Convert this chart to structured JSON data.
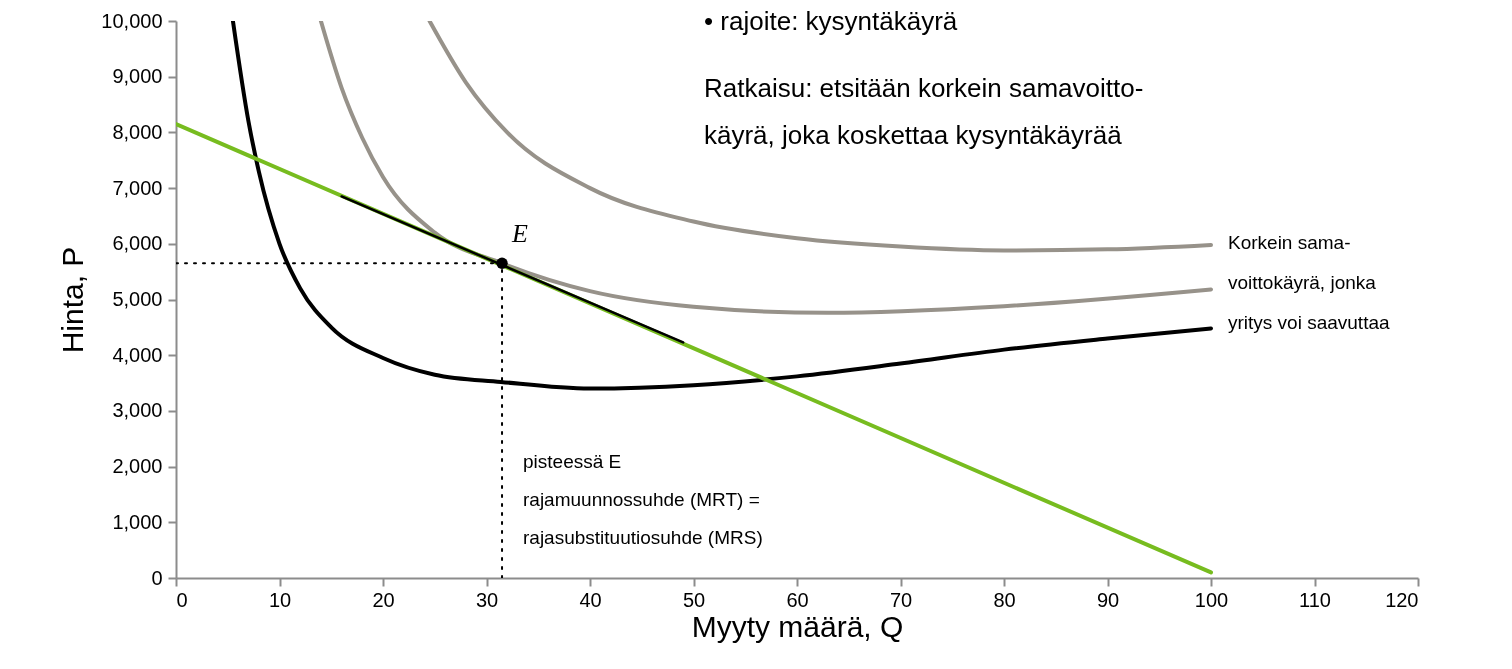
{
  "chart_data": {
    "type": "line",
    "xlabel": "Myyty määrä, Q",
    "ylabel": "Hinta, P",
    "xlim": [
      0,
      120
    ],
    "xticks": [
      0,
      10,
      20,
      30,
      40,
      50,
      60,
      70,
      80,
      90,
      100,
      110,
      120
    ],
    "ylim": [
      0,
      10000
    ],
    "yticks": [
      0,
      {
        "value": 1000,
        "label": "1,000"
      },
      {
        "value": 2000,
        "label": "2,000"
      },
      {
        "value": 3000,
        "label": "3,000"
      },
      {
        "value": 4000,
        "label": "4,000"
      },
      {
        "value": 5000,
        "label": "5,000"
      },
      {
        "value": 6000,
        "label": "6,000"
      },
      {
        "value": 7000,
        "label": "7,000"
      },
      {
        "value": 8000,
        "label": "8,000"
      },
      {
        "value": 9000,
        "label": "9,000"
      },
      {
        "value": 10000,
        "label": "10,000"
      }
    ],
    "grid": false,
    "series": [
      {
        "color": "#97928a",
        "x": [
          24.5,
          28,
          32,
          40,
          50,
          60,
          70,
          80,
          90,
          100
        ],
        "values": [
          10000,
          8900,
          8000,
          7000,
          6400,
          6100,
          5950,
          5880,
          5900,
          5980
        ]
      },
      {
        "color": "#97928a",
        "x": [
          14,
          16,
          18,
          20,
          25,
          31.5,
          40,
          50,
          63,
          80,
          100
        ],
        "values": [
          10000,
          8800,
          7900,
          7200,
          6200,
          5650,
          5150,
          4870,
          4760,
          4880,
          5180
        ]
      },
      {
        "color": "#000000",
        "x": [
          5.5,
          7,
          8,
          10,
          12,
          15,
          20,
          25,
          31.4,
          40,
          50,
          60,
          70,
          80,
          90,
          100
        ],
        "values": [
          10000,
          8200,
          7300,
          6000,
          5200,
          4500,
          3950,
          3650,
          3520,
          3400,
          3460,
          3620,
          3850,
          4100,
          4300,
          4480
        ]
      },
      {
        "color": "#77bc1f",
        "x": [
          0,
          100
        ],
        "values": [
          8150,
          100
        ]
      },
      {
        "color": "#000000",
        "x": [
          16,
          49
        ],
        "values": [
          6850,
          4230
        ]
      },
      {
        "color": "#000000",
        "line_style": "dotted",
        "x": [
          0,
          31.5
        ],
        "values": [
          5650,
          5650
        ]
      },
      {
        "color": "#000000",
        "line_style": "dotted",
        "x": [
          31.5,
          31.5
        ],
        "values": [
          0,
          5650
        ]
      },
      {
        "type": "scatter",
        "marker": "circle",
        "color": "#000000",
        "x": [
          31.5
        ],
        "values": [
          5650
        ]
      }
    ],
    "annotations": [
      "•  rajoite: kysyntäkäyrä",
      "Ratkaisu: etsitään korkein samavoitto-\nkäyrä, joka koskettaa kysyntäkäyrää",
      "Korkein sama-\nvoittokäyrä, jonka\nyritys voi saavuttaa",
      "pisteessä E\nrajamuunnossuhde (MRT) =\nrajasubstituutiosuhde (MRS)",
      {
        "text": "E",
        "x": 31.5,
        "y": 5650
      }
    ]
  }
}
